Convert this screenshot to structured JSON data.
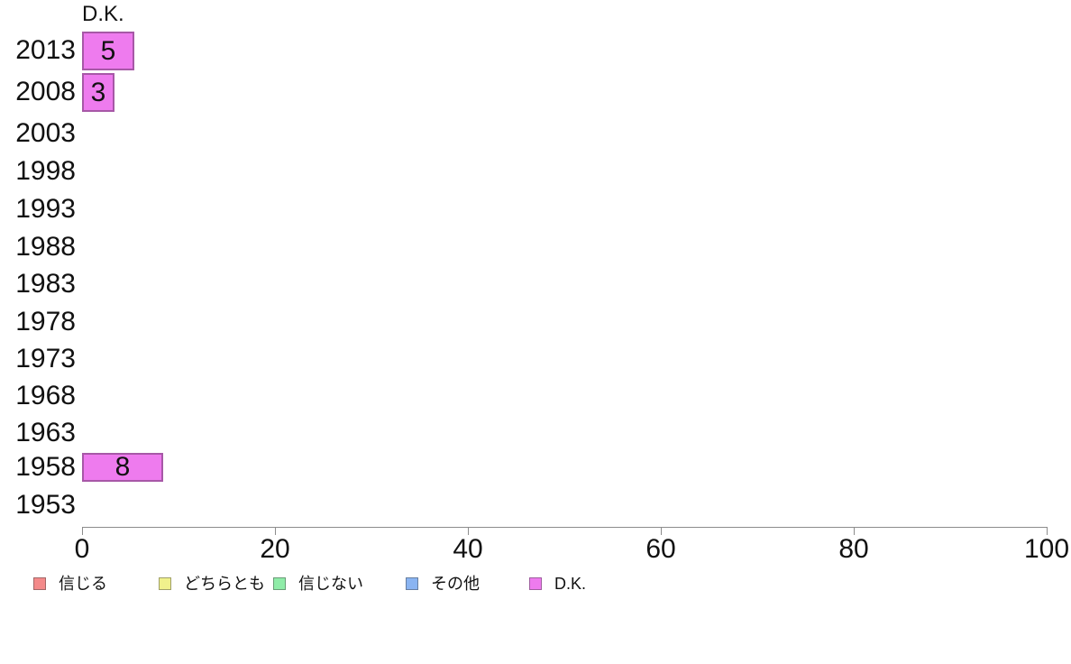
{
  "chart_data": {
    "type": "bar",
    "orientation": "horizontal",
    "title": "D.K.",
    "categories": [
      "2013",
      "2008",
      "2003",
      "1998",
      "1993",
      "1988",
      "1983",
      "1978",
      "1973",
      "1968",
      "1963",
      "1958",
      "1953"
    ],
    "series": [
      {
        "name": "D.K.",
        "color": "#EE7BEE",
        "values": [
          5,
          3,
          null,
          null,
          null,
          null,
          null,
          null,
          null,
          null,
          null,
          8,
          null
        ]
      }
    ],
    "xlim": [
      0,
      100
    ],
    "xticks": [
      "0",
      "20",
      "40",
      "60",
      "80",
      "100"
    ],
    "grid": false,
    "legend_position": "bottom",
    "legend": [
      {
        "label": "信じる",
        "color": "#F48A8A"
      },
      {
        "label": "どちらとも",
        "color": "#F0F18C"
      },
      {
        "label": "信じない",
        "color": "#8FECA8"
      },
      {
        "label": "その他",
        "color": "#8AB4F2"
      },
      {
        "label": "D.K.",
        "color": "#EE7BEE"
      }
    ],
    "colors": {
      "axis": "#8C8C8C",
      "text": "#111111",
      "bar_fill": "#EE7BEE"
    }
  }
}
